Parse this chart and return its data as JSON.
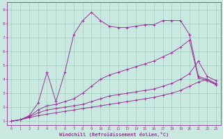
{
  "xlabel": "Windchill (Refroidissement éolien,°C)",
  "xlim_min": -0.5,
  "xlim_max": 23.5,
  "ylim_min": 0.7,
  "ylim_max": 9.5,
  "xticks": [
    0,
    1,
    2,
    3,
    4,
    5,
    6,
    7,
    8,
    9,
    10,
    11,
    12,
    13,
    14,
    15,
    16,
    17,
    18,
    19,
    20,
    21,
    22,
    23
  ],
  "yticks": [
    1,
    2,
    3,
    4,
    5,
    6,
    7,
    8,
    9
  ],
  "bg_color": "#c8e8e0",
  "line_color": "#993399",
  "grid_color": "#a0ccc0",
  "lines": [
    {
      "x": [
        0,
        1,
        2,
        3,
        4,
        5,
        6,
        7,
        8,
        9,
        10,
        11,
        12,
        13,
        14,
        15,
        16,
        17,
        18,
        19,
        20,
        21,
        22,
        23
      ],
      "y": [
        1.0,
        1.1,
        1.4,
        2.3,
        4.5,
        2.4,
        4.5,
        7.2,
        8.2,
        8.8,
        8.2,
        7.8,
        7.7,
        7.7,
        7.8,
        7.9,
        7.9,
        8.2,
        8.2,
        8.2,
        7.2,
        4.2,
        4.0,
        3.7
      ],
      "marker": "+"
    },
    {
      "x": [
        0,
        1,
        2,
        3,
        4,
        5,
        6,
        7,
        8,
        9,
        10,
        11,
        12,
        13,
        14,
        15,
        16,
        17,
        18,
        19,
        20,
        21,
        22,
        23
      ],
      "y": [
        1.0,
        1.1,
        1.35,
        1.8,
        2.1,
        2.2,
        2.4,
        2.6,
        3.0,
        3.5,
        4.0,
        4.3,
        4.5,
        4.7,
        4.9,
        5.1,
        5.3,
        5.6,
        5.9,
        6.3,
        6.8,
        4.1,
        3.9,
        3.6
      ],
      "marker": "+"
    },
    {
      "x": [
        0,
        1,
        2,
        3,
        4,
        5,
        6,
        7,
        8,
        9,
        10,
        11,
        12,
        13,
        14,
        15,
        16,
        17,
        18,
        19,
        20,
        21,
        22,
        23
      ],
      "y": [
        1.0,
        1.1,
        1.3,
        1.6,
        1.8,
        1.9,
        2.0,
        2.1,
        2.2,
        2.4,
        2.6,
        2.8,
        2.9,
        3.0,
        3.1,
        3.2,
        3.3,
        3.5,
        3.7,
        4.0,
        4.4,
        5.3,
        4.2,
        3.9
      ],
      "marker": "+"
    },
    {
      "x": [
        0,
        1,
        2,
        3,
        4,
        5,
        6,
        7,
        8,
        9,
        10,
        11,
        12,
        13,
        14,
        15,
        16,
        17,
        18,
        19,
        20,
        21,
        22,
        23
      ],
      "y": [
        1.0,
        1.1,
        1.25,
        1.4,
        1.5,
        1.6,
        1.7,
        1.8,
        1.9,
        2.0,
        2.1,
        2.2,
        2.3,
        2.4,
        2.5,
        2.6,
        2.7,
        2.85,
        3.0,
        3.2,
        3.5,
        3.8,
        4.0,
        3.6
      ],
      "marker": "+"
    }
  ]
}
